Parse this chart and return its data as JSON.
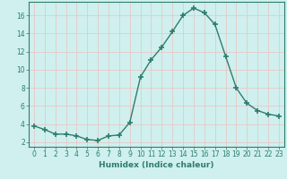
{
  "x": [
    0,
    1,
    2,
    3,
    4,
    5,
    6,
    7,
    8,
    9,
    10,
    11,
    12,
    13,
    14,
    15,
    16,
    17,
    18,
    19,
    20,
    21,
    22,
    23
  ],
  "y": [
    3.8,
    3.4,
    2.9,
    2.9,
    2.7,
    2.3,
    2.2,
    2.7,
    2.8,
    4.2,
    9.2,
    11.1,
    12.5,
    14.2,
    16.0,
    16.8,
    16.3,
    15.0,
    11.5,
    8.0,
    6.3,
    5.5,
    5.1,
    4.9
  ],
  "line_color": "#2e7d6e",
  "marker": "+",
  "markersize": 4,
  "markeredgewidth": 1.2,
  "linewidth": 1.0,
  "bg_color": "#cff0ee",
  "grid_color": "#e8c8c8",
  "xlabel": "Humidex (Indice chaleur)",
  "xlim": [
    -0.5,
    23.5
  ],
  "ylim": [
    1.5,
    17.5
  ],
  "yticks": [
    2,
    4,
    6,
    8,
    10,
    12,
    14,
    16
  ],
  "xticks": [
    0,
    1,
    2,
    3,
    4,
    5,
    6,
    7,
    8,
    9,
    10,
    11,
    12,
    13,
    14,
    15,
    16,
    17,
    18,
    19,
    20,
    21,
    22,
    23
  ],
  "label_fontsize": 6.5,
  "tick_fontsize": 5.5
}
